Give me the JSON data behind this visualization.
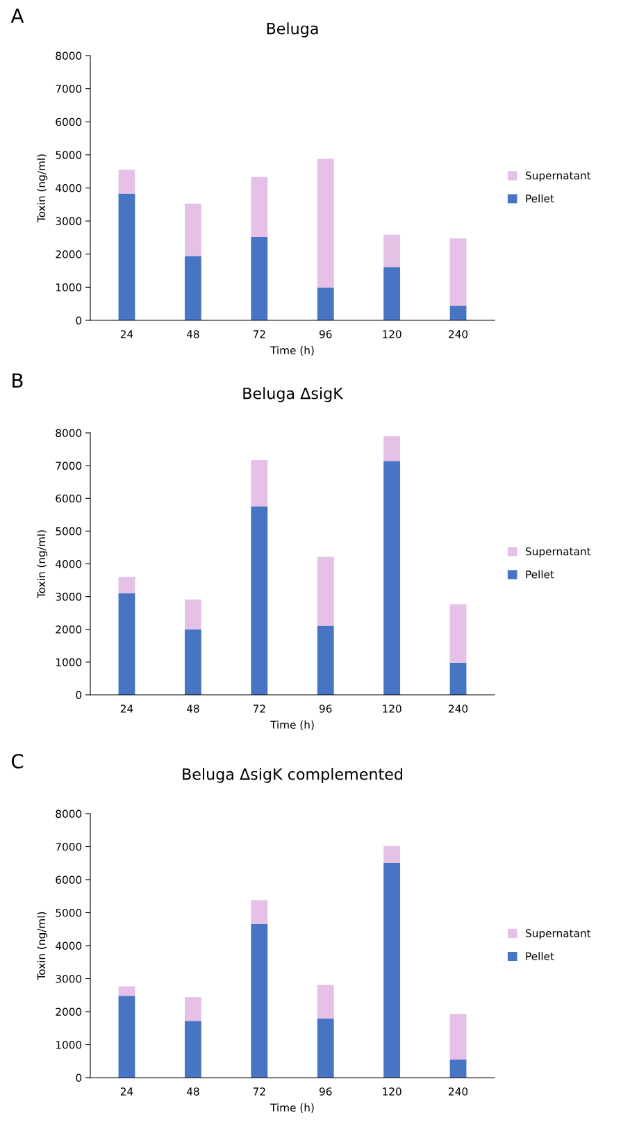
{
  "chart_data": [
    {
      "type": "bar",
      "title": "Beluga",
      "xlabel": "Time (h)",
      "ylabel": "Toxin (ng/ml)",
      "annotations": [
        "A"
      ],
      "categories": [
        "24",
        "48",
        "72",
        "96",
        "120",
        "240"
      ],
      "stacked": true,
      "ylim": [
        0,
        8000
      ],
      "yticks": [
        0,
        1000,
        2000,
        3000,
        4000,
        5000,
        6000,
        7000,
        8000
      ],
      "grid": false,
      "legend": "right",
      "series": [
        {
          "name": "Pellet",
          "color": "#4874c4",
          "values": [
            3830,
            1940,
            2520,
            990,
            1610,
            440
          ]
        },
        {
          "name": "Supernatant",
          "color": "#e5c1e8",
          "values": [
            720,
            1590,
            1810,
            3890,
            980,
            2040
          ]
        }
      ]
    },
    {
      "type": "bar",
      "title": "Beluga ΔsigK",
      "xlabel": "Time (h)",
      "ylabel": "Toxin (ng/ml)",
      "annotations": [
        "B"
      ],
      "categories": [
        "24",
        "48",
        "72",
        "96",
        "120",
        "240"
      ],
      "stacked": true,
      "ylim": [
        0,
        8000
      ],
      "yticks": [
        0,
        1000,
        2000,
        3000,
        4000,
        5000,
        6000,
        7000,
        8000
      ],
      "grid": false,
      "legend": "right",
      "series": [
        {
          "name": "Pellet",
          "color": "#4874c4",
          "values": [
            3100,
            2000,
            5750,
            2110,
            7140,
            980
          ]
        },
        {
          "name": "Supernatant",
          "color": "#e5c1e8",
          "values": [
            500,
            910,
            1420,
            2110,
            760,
            1790
          ]
        }
      ]
    },
    {
      "type": "bar",
      "title": "Beluga ΔsigK complemented",
      "xlabel": "Time (h)",
      "ylabel": "Toxin (ng/ml)",
      "annotations": [
        "C"
      ],
      "categories": [
        "24",
        "48",
        "72",
        "96",
        "120",
        "240"
      ],
      "stacked": true,
      "ylim": [
        0,
        8000
      ],
      "yticks": [
        0,
        1000,
        2000,
        3000,
        4000,
        5000,
        6000,
        7000,
        8000
      ],
      "grid": false,
      "legend": "right",
      "series": [
        {
          "name": "Pellet",
          "color": "#4874c4",
          "values": [
            2480,
            1720,
            4660,
            1790,
            6510,
            550
          ]
        },
        {
          "name": "Supernatant",
          "color": "#e5c1e8",
          "values": [
            290,
            720,
            720,
            1020,
            510,
            1380
          ]
        }
      ]
    }
  ]
}
